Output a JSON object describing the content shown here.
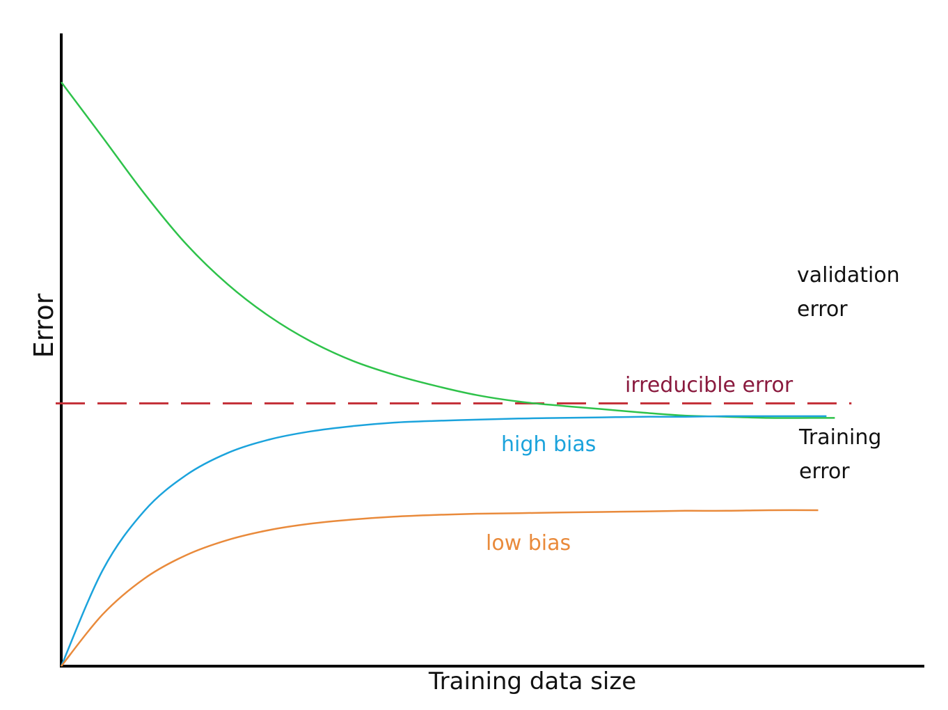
{
  "chart_data": {
    "type": "line",
    "xlabel": "Training data size",
    "ylabel": "Error",
    "xlim": [
      0,
      100
    ],
    "ylim": [
      0,
      100
    ],
    "grid": false,
    "legend": "none",
    "series": [
      {
        "name": "validation error",
        "label_lines": [
          "validation",
          "error"
        ],
        "color": "#2ec24a",
        "x": [
          0,
          5,
          10,
          15,
          20,
          25,
          30,
          35,
          40,
          45,
          50,
          55,
          60,
          65,
          70,
          75,
          80,
          85,
          90,
          93
        ],
        "y": [
          100,
          90.5,
          80.9,
          72.3,
          65.4,
          59.9,
          55.6,
          52.3,
          49.9,
          48.0,
          46.4,
          45.3,
          44.6,
          44.0,
          43.4,
          42.9,
          42.7,
          42.5,
          42.5,
          42.5
        ]
      },
      {
        "name": "high bias",
        "color": "#1ba3dc",
        "x": [
          0,
          5,
          10,
          15,
          20,
          25,
          30,
          35,
          40,
          45,
          50,
          55,
          60,
          65,
          70,
          75,
          80,
          85,
          90,
          92
        ],
        "y": [
          0,
          16.5,
          26.6,
          32.7,
          36.5,
          38.8,
          40.2,
          41.1,
          41.7,
          42.0,
          42.2,
          42.4,
          42.5,
          42.6,
          42.7,
          42.7,
          42.8,
          42.8,
          42.8,
          42.8
        ]
      },
      {
        "name": "low bias",
        "color": "#e98a3b",
        "x": [
          0,
          5,
          10,
          15,
          20,
          25,
          30,
          35,
          40,
          45,
          50,
          55,
          60,
          65,
          70,
          75,
          80,
          85,
          91
        ],
        "y": [
          0,
          8.9,
          15.0,
          19.0,
          21.6,
          23.3,
          24.4,
          25.1,
          25.6,
          25.9,
          26.1,
          26.2,
          26.3,
          26.4,
          26.5,
          26.6,
          26.6,
          26.7,
          26.7
        ]
      }
    ],
    "reference_lines": [
      {
        "name": "irreducible error",
        "y": 45.0,
        "x_end": 95,
        "color": "#c4323a",
        "style": "dashed"
      }
    ],
    "annotations": {
      "training_error_lines": [
        "Training",
        "error"
      ],
      "irreducible_label_color": "#8a1a3e"
    }
  }
}
